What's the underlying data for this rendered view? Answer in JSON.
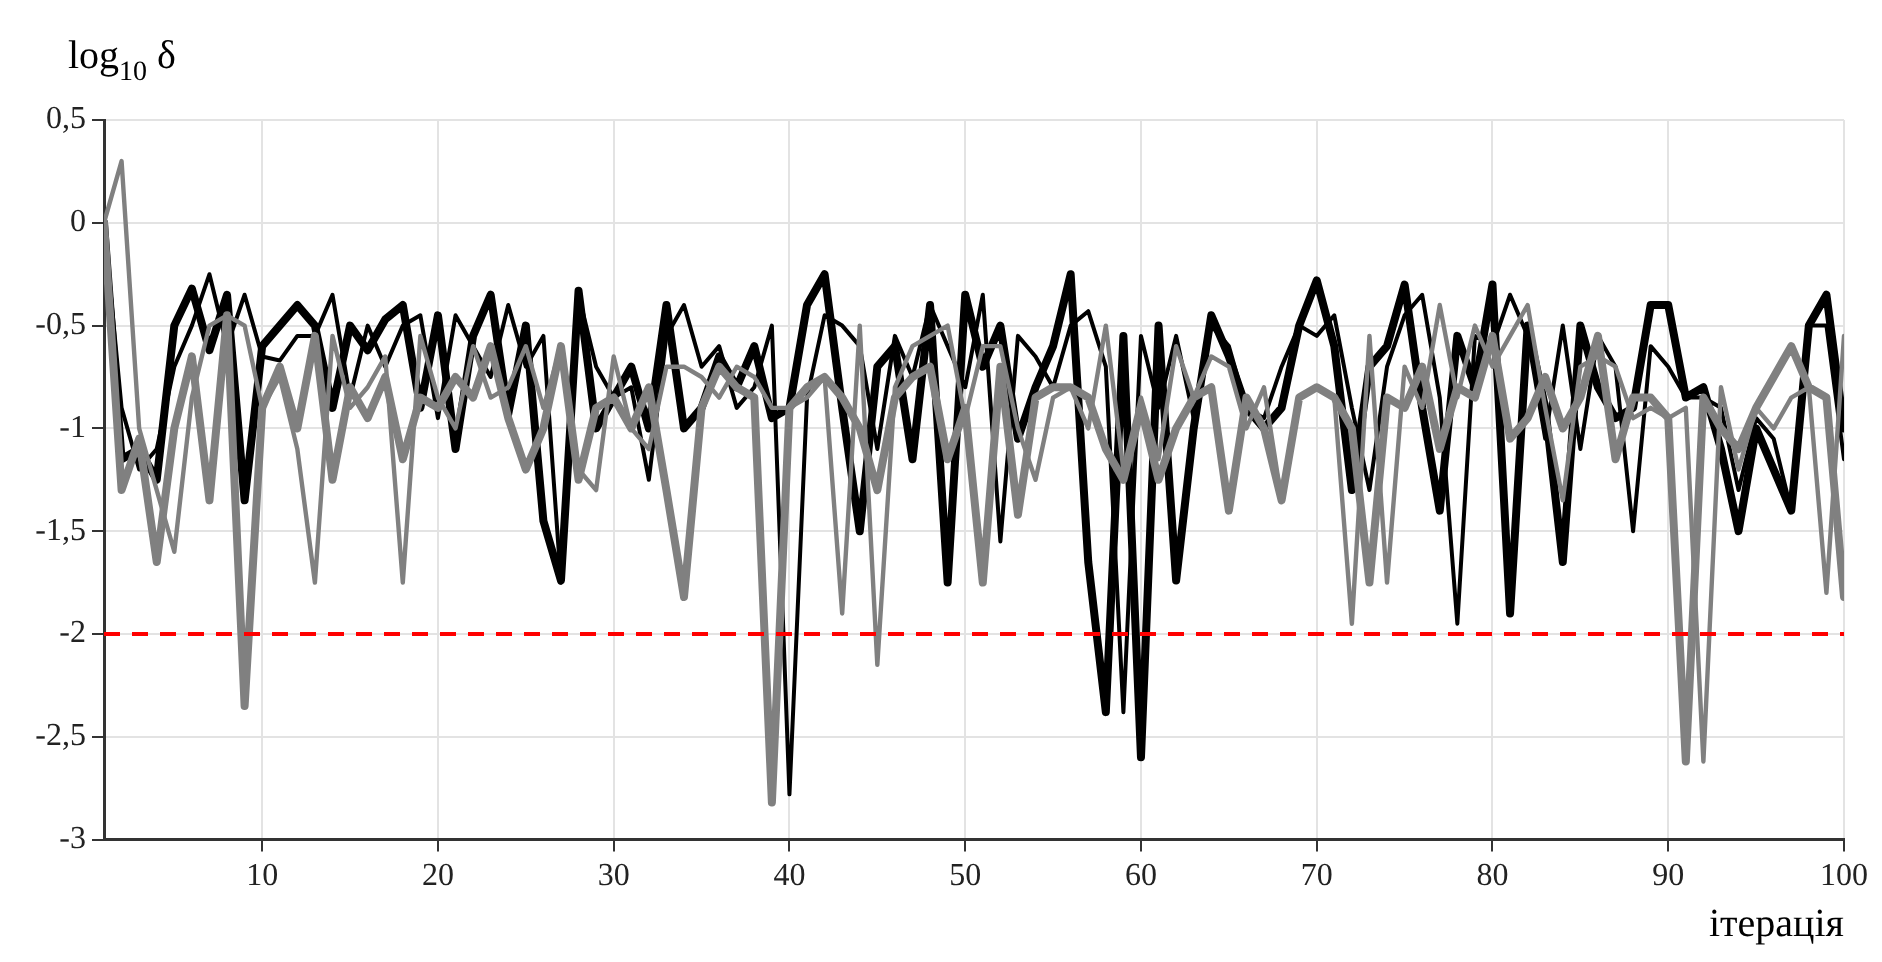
{
  "chart_data": {
    "type": "line",
    "xlabel": "ітерація",
    "ylabel": "log$_{10}$ δ",
    "x": [
      1,
      2,
      3,
      4,
      5,
      6,
      7,
      8,
      9,
      10,
      11,
      12,
      13,
      14,
      15,
      16,
      17,
      18,
      19,
      20,
      21,
      22,
      23,
      24,
      25,
      26,
      27,
      28,
      29,
      30,
      31,
      32,
      33,
      34,
      35,
      36,
      37,
      38,
      39,
      40,
      41,
      42,
      43,
      44,
      45,
      46,
      47,
      48,
      49,
      50,
      51,
      52,
      53,
      54,
      55,
      56,
      57,
      58,
      59,
      60,
      61,
      62,
      63,
      64,
      65,
      66,
      67,
      68,
      69,
      70,
      71,
      72,
      73,
      74,
      75,
      76,
      77,
      78,
      79,
      80,
      81,
      82,
      83,
      84,
      85,
      86,
      87,
      88,
      89,
      90,
      91,
      92,
      93,
      94,
      95,
      96,
      97,
      98,
      99,
      100
    ],
    "series": [
      {
        "color": "#000000",
        "values": [
          0,
          -1.15,
          -1.1,
          -1.25,
          -0.5,
          -0.32,
          -0.62,
          -0.35,
          -1.35,
          -0.6,
          -0.5,
          -0.4,
          -0.5,
          -0.9,
          -0.5,
          -0.62,
          -0.47,
          -0.4,
          -0.9,
          -0.45,
          -1.1,
          -0.55,
          -0.35,
          -0.93,
          -0.5,
          -1.45,
          -1.74,
          -0.33,
          -1.0,
          -0.85,
          -0.7,
          -1.0,
          -0.4,
          -1.0,
          -0.9,
          -0.65,
          -0.8,
          -0.6,
          -0.95,
          -0.9,
          -0.4,
          -0.25,
          -0.9,
          -1.5,
          -0.7,
          -0.6,
          -1.15,
          -0.4,
          -1.75,
          -0.35,
          -0.7,
          -0.5,
          -1.05,
          -0.8,
          -0.6,
          -0.25,
          -1.65,
          -2.38,
          -0.55,
          -2.6,
          -0.5,
          -1.74,
          -1.0,
          -0.45,
          -0.65,
          -0.9,
          -1.0,
          -0.9,
          -0.5,
          -0.28,
          -0.6,
          -1.3,
          -0.7,
          -0.6,
          -0.3,
          -0.9,
          -1.4,
          -0.55,
          -0.8,
          -0.3,
          -1.9,
          -0.5,
          -0.9,
          -1.65,
          -0.5,
          -0.8,
          -0.95,
          -0.9,
          -0.4,
          -0.4,
          -0.85,
          -0.8,
          -1.1,
          -1.5,
          -1.0,
          -1.2,
          -1.4,
          -0.5,
          -0.35,
          -1.0
        ]
      },
      {
        "color": "#000000",
        "values": [
          0,
          -0.9,
          -1.2,
          -1.1,
          -0.7,
          -0.5,
          -0.25,
          -0.6,
          -0.35,
          -0.65,
          -0.67,
          -0.55,
          -0.55,
          -0.35,
          -0.85,
          -0.5,
          -0.7,
          -0.5,
          -0.45,
          -0.95,
          -0.45,
          -0.6,
          -0.75,
          -0.4,
          -0.7,
          -0.55,
          -1.75,
          -0.35,
          -0.7,
          -0.85,
          -0.8,
          -1.25,
          -0.55,
          -0.4,
          -0.7,
          -0.6,
          -0.9,
          -0.8,
          -0.5,
          -2.78,
          -0.85,
          -0.45,
          -0.5,
          -0.6,
          -1.1,
          -0.55,
          -0.75,
          -0.4,
          -0.6,
          -0.8,
          -0.35,
          -1.55,
          -0.55,
          -0.65,
          -0.8,
          -0.5,
          -0.43,
          -0.7,
          -2.38,
          -0.55,
          -0.9,
          -0.55,
          -0.95,
          -0.5,
          -0.6,
          -0.9,
          -0.95,
          -0.7,
          -0.5,
          -0.55,
          -0.45,
          -0.9,
          -1.3,
          -0.7,
          -0.45,
          -0.35,
          -0.85,
          -1.95,
          -0.55,
          -0.6,
          -0.35,
          -0.55,
          -1.05,
          -0.5,
          -1.1,
          -0.55,
          -0.7,
          -1.5,
          -0.6,
          -0.7,
          -0.85,
          -0.85,
          -0.9,
          -1.3,
          -0.95,
          -1.05,
          -1.4,
          -0.5,
          -0.5,
          -1.15
        ]
      },
      {
        "color": "#808080",
        "values": [
          0,
          -1.3,
          -1.05,
          -1.65,
          -1.0,
          -0.65,
          -1.35,
          -0.45,
          -2.35,
          -0.9,
          -0.7,
          -1.0,
          -0.55,
          -1.25,
          -0.8,
          -0.95,
          -0.75,
          -1.15,
          -0.85,
          -0.9,
          -0.75,
          -0.85,
          -0.6,
          -0.95,
          -1.2,
          -1.0,
          -0.6,
          -1.25,
          -0.9,
          -0.85,
          -1.0,
          -0.8,
          -1.3,
          -1.82,
          -0.9,
          -0.7,
          -0.8,
          -0.85,
          -2.82,
          -0.9,
          -0.8,
          -0.75,
          -0.85,
          -1.0,
          -1.3,
          -0.85,
          -0.75,
          -0.7,
          -1.15,
          -0.9,
          -1.75,
          -0.7,
          -1.42,
          -0.85,
          -0.8,
          -0.8,
          -0.85,
          -1.1,
          -1.25,
          -0.9,
          -1.25,
          -1.0,
          -0.85,
          -0.8,
          -1.4,
          -0.85,
          -1.0,
          -1.35,
          -0.85,
          -0.8,
          -0.85,
          -1.0,
          -1.75,
          -0.85,
          -0.9,
          -0.7,
          -1.1,
          -0.8,
          -0.85,
          -0.55,
          -1.05,
          -0.95,
          -0.75,
          -1.0,
          -0.85,
          -0.55,
          -1.15,
          -0.85,
          -0.85,
          -0.95,
          -2.62,
          -0.85,
          -1.0,
          -1.1,
          -0.9,
          -0.75,
          -0.6,
          -0.8,
          -0.85,
          -1.82
        ]
      },
      {
        "color": "#808080",
        "values": [
          0,
          0.3,
          -1.0,
          -1.3,
          -1.6,
          -0.85,
          -0.5,
          -0.45,
          -0.5,
          -0.9,
          -0.75,
          -1.1,
          -1.75,
          -0.55,
          -0.9,
          -0.8,
          -0.65,
          -1.75,
          -0.55,
          -0.85,
          -1.0,
          -0.6,
          -0.85,
          -0.8,
          -0.6,
          -0.9,
          -0.6,
          -1.2,
          -1.3,
          -0.65,
          -1.0,
          -1.1,
          -0.7,
          -0.7,
          -0.75,
          -0.85,
          -0.7,
          -0.75,
          -0.9,
          -0.9,
          -0.85,
          -0.75,
          -1.9,
          -0.5,
          -2.15,
          -0.8,
          -0.6,
          -0.55,
          -0.5,
          -0.95,
          -0.6,
          -0.6,
          -1.0,
          -1.25,
          -0.85,
          -0.8,
          -1.0,
          -0.5,
          -1.2,
          -0.85,
          -1.15,
          -0.6,
          -0.85,
          -0.65,
          -0.7,
          -1.0,
          -0.8,
          -1.35,
          -0.85,
          -0.8,
          -0.85,
          -1.95,
          -0.55,
          -1.75,
          -0.7,
          -0.9,
          -0.4,
          -0.85,
          -0.5,
          -0.7,
          -0.55,
          -0.4,
          -0.9,
          -1.35,
          -0.7,
          -0.65,
          -0.7,
          -0.95,
          -0.9,
          -0.95,
          -0.9,
          -2.62,
          -0.8,
          -1.2,
          -0.9,
          -1.0,
          -0.85,
          -0.8,
          -1.8,
          -0.55
        ]
      }
    ],
    "xlim": [
      1,
      100
    ],
    "xticks": [
      10,
      20,
      30,
      40,
      50,
      60,
      70,
      80,
      90,
      100
    ],
    "ylim": [
      -3,
      0.5
    ],
    "yticks": [
      {
        "value": -3,
        "label": "-3"
      },
      {
        "value": -2.5,
        "label": "-2,5"
      },
      {
        "value": -2,
        "label": "-2"
      },
      {
        "value": -1.5,
        "label": "-1,5"
      },
      {
        "value": -1,
        "label": "-1"
      },
      {
        "value": -0.5,
        "label": "-0,5"
      },
      {
        "value": 0,
        "label": "0"
      },
      {
        "value": 0.5,
        "label": "0,5"
      }
    ],
    "ref_lines": [
      {
        "axis": "y",
        "value": -2,
        "color": "#ff0000",
        "line_style": "dashed"
      }
    ],
    "grid": true,
    "legend": false,
    "marker": "none",
    "line_style": "solid"
  }
}
